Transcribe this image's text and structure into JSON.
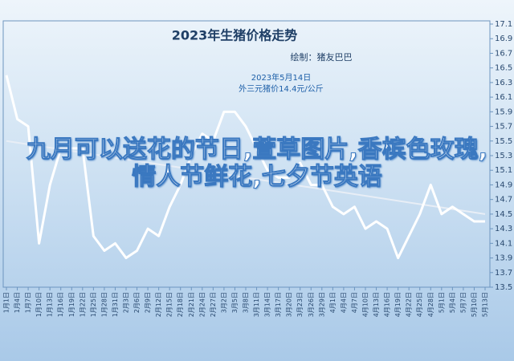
{
  "overlay_text": "九月可以送花的节日,萱草图片,香槟色玫瑰,情人节鲜花,七夕节英语",
  "chart_data": {
    "type": "line",
    "title": "2023年生猪价格走势",
    "subtitle": "绘制：猪友巴巴",
    "annotations": [
      "2023年5月14日",
      "外三元猪价14.4元/公斤"
    ],
    "categories": [
      "1月1日",
      "1月4日",
      "1月7日",
      "1月10日",
      "1月13日",
      "1月16日",
      "1月19日",
      "1月22日",
      "1月25日",
      "1月28日",
      "1月31日",
      "2月3日",
      "2月6日",
      "2月9日",
      "2月12日",
      "2月15日",
      "2月18日",
      "2月21日",
      "2月24日",
      "2月27日",
      "3月2日",
      "3月5日",
      "3月8日",
      "3月11日",
      "3月14日",
      "3月17日",
      "3月20日",
      "3月23日",
      "3月26日",
      "3月29日",
      "4月1日",
      "4月4日",
      "4月7日",
      "4月10日",
      "4月13日",
      "4月16日",
      "4月19日",
      "4月22日",
      "4月25日",
      "4月28日",
      "5月1日",
      "5月4日",
      "5月7日",
      "5月10日",
      "5月13日"
    ],
    "values": [
      16.4,
      15.8,
      15.7,
      14.1,
      14.9,
      15.4,
      15.4,
      15.4,
      14.2,
      14.0,
      14.1,
      13.9,
      14.0,
      14.3,
      14.2,
      14.6,
      14.9,
      15.3,
      15.6,
      15.5,
      15.9,
      15.9,
      15.7,
      15.4,
      15.1,
      15.0,
      15.0,
      15.2,
      14.9,
      14.9,
      14.6,
      14.5,
      14.6,
      14.3,
      14.4,
      14.3,
      13.9,
      14.2,
      14.5,
      14.9,
      14.5,
      14.6,
      14.5,
      14.4,
      14.4
    ],
    "color": "#ffffff",
    "trendline": [
      15.5,
      14.5
    ],
    "ylim": [
      13.5,
      17.1
    ],
    "yticks": [
      13.5,
      13.7,
      13.9,
      14.1,
      14.3,
      14.5,
      14.7,
      14.9,
      15.1,
      15.3,
      15.5,
      15.7,
      15.9,
      16.1,
      16.3,
      16.5,
      16.7,
      16.9,
      17.1
    ],
    "grid": false
  }
}
